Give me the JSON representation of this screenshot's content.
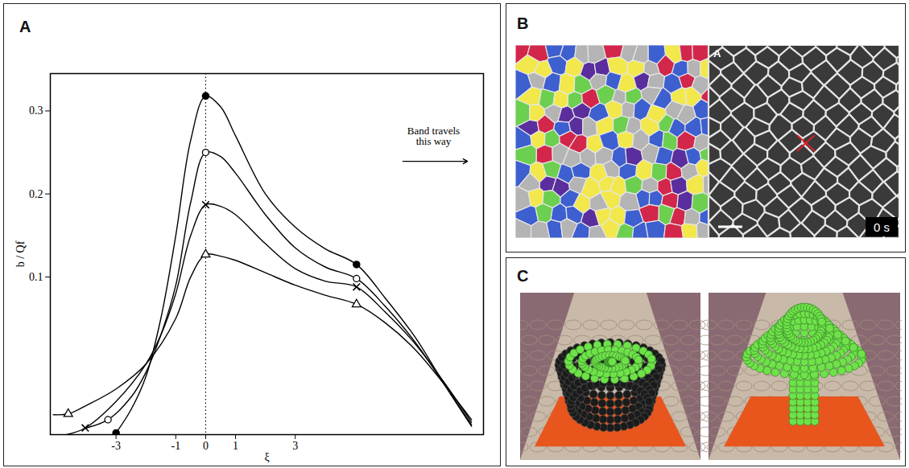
{
  "chart_data": {
    "type": "line",
    "panel_label": "A",
    "xlabel": "ξ",
    "ylabel": "b / Qf",
    "xlim": [
      -5.2,
      9.3
    ],
    "ylim": [
      -0.09,
      0.345
    ],
    "xticks": [
      -3,
      -1,
      0,
      1,
      3
    ],
    "yticks": [
      0.1,
      0.2,
      0.3
    ],
    "grid": false,
    "reference_lines": [
      {
        "x": 0,
        "line_style": "dotted"
      }
    ],
    "annotations": [
      {
        "text": "Band travels this way",
        "arrow": "right"
      }
    ],
    "series": [
      {
        "marker": "filled circle",
        "color": "#000000",
        "line_style": "solid",
        "x": [
          -3,
          -2.5,
          -2,
          -1.5,
          -1,
          -0.5,
          0,
          0.5,
          1,
          2,
          3,
          4,
          5.05,
          6,
          7,
          8,
          8.9
        ],
        "values": [
          -0.088,
          -0.06,
          -0.02,
          0.05,
          0.15,
          0.265,
          0.318,
          0.305,
          0.27,
          0.2,
          0.16,
          0.134,
          0.115,
          0.075,
          0.028,
          -0.03,
          -0.08
        ],
        "marker_x": [
          -3,
          0,
          5.05
        ]
      },
      {
        "marker": "open circle",
        "color": "#000000",
        "line_style": "solid",
        "x": [
          -4,
          -3.27,
          -2.5,
          -2,
          -1.5,
          -1,
          -0.5,
          0,
          0.5,
          1,
          2,
          3,
          4,
          5.05,
          6,
          7,
          8,
          8.9
        ],
        "values": [
          -0.082,
          -0.072,
          -0.045,
          -0.015,
          0.03,
          0.09,
          0.19,
          0.25,
          0.245,
          0.225,
          0.175,
          0.135,
          0.112,
          0.098,
          0.065,
          0.022,
          -0.03,
          -0.078
        ],
        "marker_x": [
          -3.27,
          0,
          5.05
        ]
      },
      {
        "marker": "cross",
        "color": "#000000",
        "line_style": "solid",
        "x": [
          -4.65,
          -4.03,
          -3,
          -2,
          -1.5,
          -1,
          -0.5,
          0,
          0.5,
          1,
          2,
          3,
          4,
          5.05,
          6,
          7,
          8,
          8.9
        ],
        "values": [
          -0.09,
          -0.082,
          -0.05,
          -0.005,
          0.03,
          0.08,
          0.15,
          0.187,
          0.185,
          0.175,
          0.14,
          0.11,
          0.095,
          0.088,
          0.058,
          0.02,
          -0.028,
          -0.075
        ],
        "marker_x": [
          -4.03,
          0,
          5.05
        ]
      },
      {
        "marker": "open triangle",
        "color": "#000000",
        "line_style": "solid",
        "x": [
          -5.1,
          -4.6,
          -4,
          -3,
          -2,
          -1,
          -0.5,
          0,
          0.5,
          1,
          2,
          3,
          4,
          5.05,
          6,
          7,
          8,
          8.9
        ],
        "values": [
          -0.066,
          -0.065,
          -0.055,
          -0.035,
          -0.005,
          0.05,
          0.1,
          0.127,
          0.125,
          0.12,
          0.105,
          0.09,
          0.078,
          0.067,
          0.045,
          0.013,
          -0.03,
          -0.072
        ],
        "marker_x": [
          -4.6,
          0,
          5.05
        ]
      }
    ]
  },
  "panel_B": {
    "label": "B",
    "micrograph": {
      "inset_label": "A",
      "time": "0 s"
    }
  },
  "panel_C": {
    "label": "C"
  }
}
